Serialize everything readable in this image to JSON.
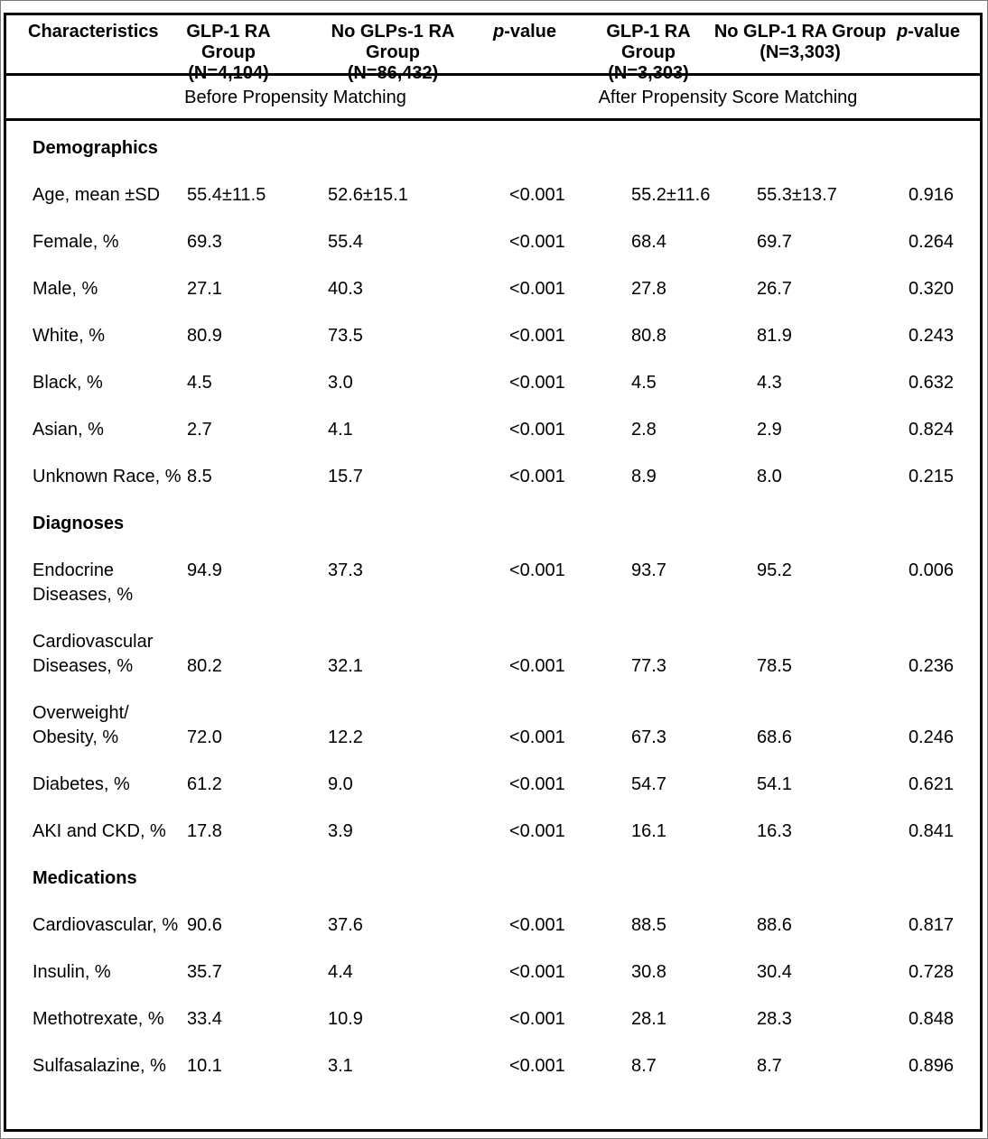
{
  "header": {
    "characteristics": "Characteristics",
    "groups": [
      {
        "line1": "GLP-1 RA Group",
        "line2": "(N=4,104)"
      },
      {
        "line1": "No GLPs-1 RA Group",
        "line2": "(N=86,432)"
      },
      {
        "line1": "GLP-1 RA Group",
        "line2": "(N=3,303)"
      },
      {
        "line1": "No GLP-1 RA Group",
        "line2": "(N=3,303)"
      }
    ],
    "pvalue": {
      "p": "p",
      "rest": "-value"
    }
  },
  "subheader": {
    "before": "Before Propensity Matching",
    "after": "After Propensity Score Matching"
  },
  "sections": [
    {
      "title": "Demographics",
      "rows": [
        {
          "label": "Age, mean ±SD",
          "v1": "55.4±11.5",
          "v2": "52.6±15.1",
          "p1": "<0.001",
          "v3": "55.2±11.6",
          "v4": "55.3±13.7",
          "p2": "0.916"
        },
        {
          "label": "Female, %",
          "v1": "69.3",
          "v2": "55.4",
          "p1": "<0.001",
          "v3": "68.4",
          "v4": "69.7",
          "p2": "0.264"
        },
        {
          "label": "Male, %",
          "v1": "27.1",
          "v2": "40.3",
          "p1": "<0.001",
          "v3": "27.8",
          "v4": "26.7",
          "p2": "0.320"
        },
        {
          "label": "White, %",
          "v1": "80.9",
          "v2": "73.5",
          "p1": "<0.001",
          "v3": "80.8",
          "v4": "81.9",
          "p2": "0.243"
        },
        {
          "label": "Black, %",
          "v1": "4.5",
          "v2": "3.0",
          "p1": "<0.001",
          "v3": "4.5",
          "v4": "4.3",
          "p2": "0.632"
        },
        {
          "label": "Asian, %",
          "v1": "2.7",
          "v2": "4.1",
          "p1": "<0.001",
          "v3": "2.8",
          "v4": "2.9",
          "p2": "0.824"
        },
        {
          "label": "Unknown Race, %",
          "v1": "8.5",
          "v2": "15.7",
          "p1": "<0.001",
          "v3": "8.9",
          "v4": "8.0",
          "p2": "0.215"
        }
      ]
    },
    {
      "title": "Diagnoses",
      "rows": [
        {
          "label": "Endocrine\nDiseases, %",
          "v1": "94.9",
          "v2": "37.3",
          "p1": "<0.001",
          "v3": "93.7",
          "v4": "95.2",
          "p2": "0.006"
        },
        {
          "label": "Cardiovascular\nDiseases, %",
          "v1": "80.2",
          "v2": "32.1",
          "p1": "<0.001",
          "v3": "77.3",
          "v4": "78.5",
          "p2": "0.236"
        },
        {
          "label": "Overweight/\nObesity, %",
          "v1": "72.0",
          "v2": "12.2",
          "p1": "<0.001",
          "v3": "67.3",
          "v4": "68.6",
          "p2": "0.246"
        },
        {
          "label": "Diabetes, %",
          "v1": "61.2",
          "v2": "9.0",
          "p1": "<0.001",
          "v3": "54.7",
          "v4": "54.1",
          "p2": "0.621"
        },
        {
          "label": "AKI and CKD, %",
          "v1": "17.8",
          "v2": "3.9",
          "p1": "<0.001",
          "v3": "16.1",
          "v4": "16.3",
          "p2": "0.841"
        }
      ]
    },
    {
      "title": "Medications",
      "rows": [
        {
          "label": "Cardiovascular, %",
          "v1": "90.6",
          "v2": "37.6",
          "p1": "<0.001",
          "v3": "88.5",
          "v4": "88.6",
          "p2": "0.817"
        },
        {
          "label": "Insulin, %",
          "v1": "35.7",
          "v2": "4.4",
          "p1": "<0.001",
          "v3": "30.8",
          "v4": "30.4",
          "p2": "0.728"
        },
        {
          "label": "Methotrexate, %",
          "v1": "33.4",
          "v2": "10.9",
          "p1": "<0.001",
          "v3": "28.1",
          "v4": "28.3",
          "p2": "0.848"
        },
        {
          "label": "Sulfasalazine, %",
          "v1": "10.1",
          "v2": "3.1",
          "p1": "<0.001",
          "v3": "8.7",
          "v4": "8.7",
          "p2": "0.896"
        }
      ]
    }
  ]
}
